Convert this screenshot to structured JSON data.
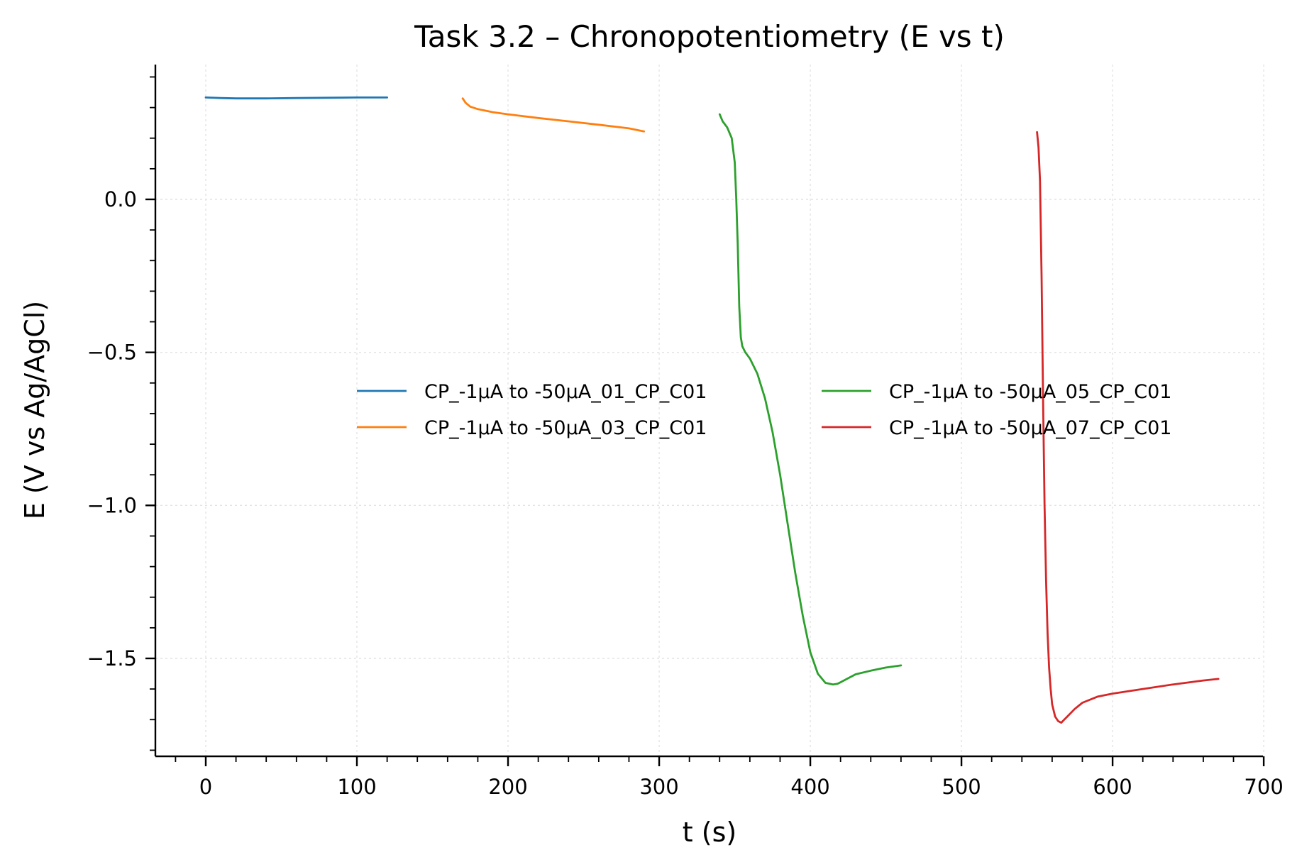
{
  "chart_data": {
    "type": "line",
    "title": "Task 3.2 – Chronopotentiometry (E vs t)",
    "xlabel": "t (s)",
    "ylabel": "E (V vs Ag/AgCl)",
    "xlim": [
      -33,
      705
    ],
    "ylim": [
      -1.8,
      0.44
    ],
    "xticks": [
      0,
      100,
      200,
      300,
      400,
      500,
      600,
      700
    ],
    "xtick_labels": [
      "0",
      "100",
      "200",
      "300",
      "400",
      "500",
      "600",
      "700"
    ],
    "yticks": [
      0.0,
      -0.5,
      -1.0,
      -1.5
    ],
    "ytick_labels": [
      "0.0",
      "−0.5",
      "−1.0",
      "−1.5"
    ],
    "grid": true,
    "legend_position": "center-right",
    "series": [
      {
        "name": "CP_-1μA to -50μA_01_CP_C01",
        "color": "#1f77b4",
        "x": [
          0,
          10,
          20,
          40,
          60,
          80,
          100,
          120
        ],
        "y": [
          0.333,
          0.331,
          0.33,
          0.33,
          0.331,
          0.332,
          0.333,
          0.333
        ]
      },
      {
        "name": "CP_-1μA to -50μA_03_CP_C01",
        "color": "#ff7f0e",
        "x": [
          170,
          172,
          175,
          180,
          190,
          200,
          220,
          240,
          260,
          280,
          290
        ],
        "y": [
          0.33,
          0.315,
          0.303,
          0.295,
          0.285,
          0.278,
          0.266,
          0.255,
          0.244,
          0.232,
          0.222
        ]
      },
      {
        "name": "CP_-1μA to -50μA_05_CP_C01",
        "color": "#2ca02c",
        "x": [
          340,
          342,
          345,
          348,
          350,
          351,
          352,
          353,
          354,
          355,
          357,
          360,
          365,
          370,
          375,
          380,
          385,
          390,
          395,
          400,
          405,
          410,
          415,
          418,
          420,
          425,
          430,
          440,
          450,
          460
        ],
        "y": [
          0.278,
          0.255,
          0.235,
          0.2,
          0.12,
          0.0,
          -0.15,
          -0.35,
          -0.45,
          -0.48,
          -0.5,
          -0.52,
          -0.57,
          -0.65,
          -0.76,
          -0.9,
          -1.06,
          -1.22,
          -1.36,
          -1.48,
          -1.55,
          -1.58,
          -1.585,
          -1.583,
          -1.578,
          -1.565,
          -1.552,
          -1.54,
          -1.53,
          -1.523
        ]
      },
      {
        "name": "CP_-1μA to -50μA_07_CP_C01",
        "color": "#d62728",
        "x": [
          550,
          551,
          552,
          553,
          554,
          555,
          556,
          557,
          558,
          559,
          560,
          562,
          564,
          566,
          568,
          570,
          575,
          580,
          590,
          600,
          620,
          640,
          660,
          670
        ],
        "y": [
          0.22,
          0.17,
          0.06,
          -0.25,
          -0.65,
          -1.0,
          -1.25,
          -1.42,
          -1.53,
          -1.6,
          -1.65,
          -1.69,
          -1.705,
          -1.71,
          -1.7,
          -1.69,
          -1.665,
          -1.645,
          -1.625,
          -1.615,
          -1.6,
          -1.585,
          -1.572,
          -1.567
        ]
      }
    ]
  }
}
